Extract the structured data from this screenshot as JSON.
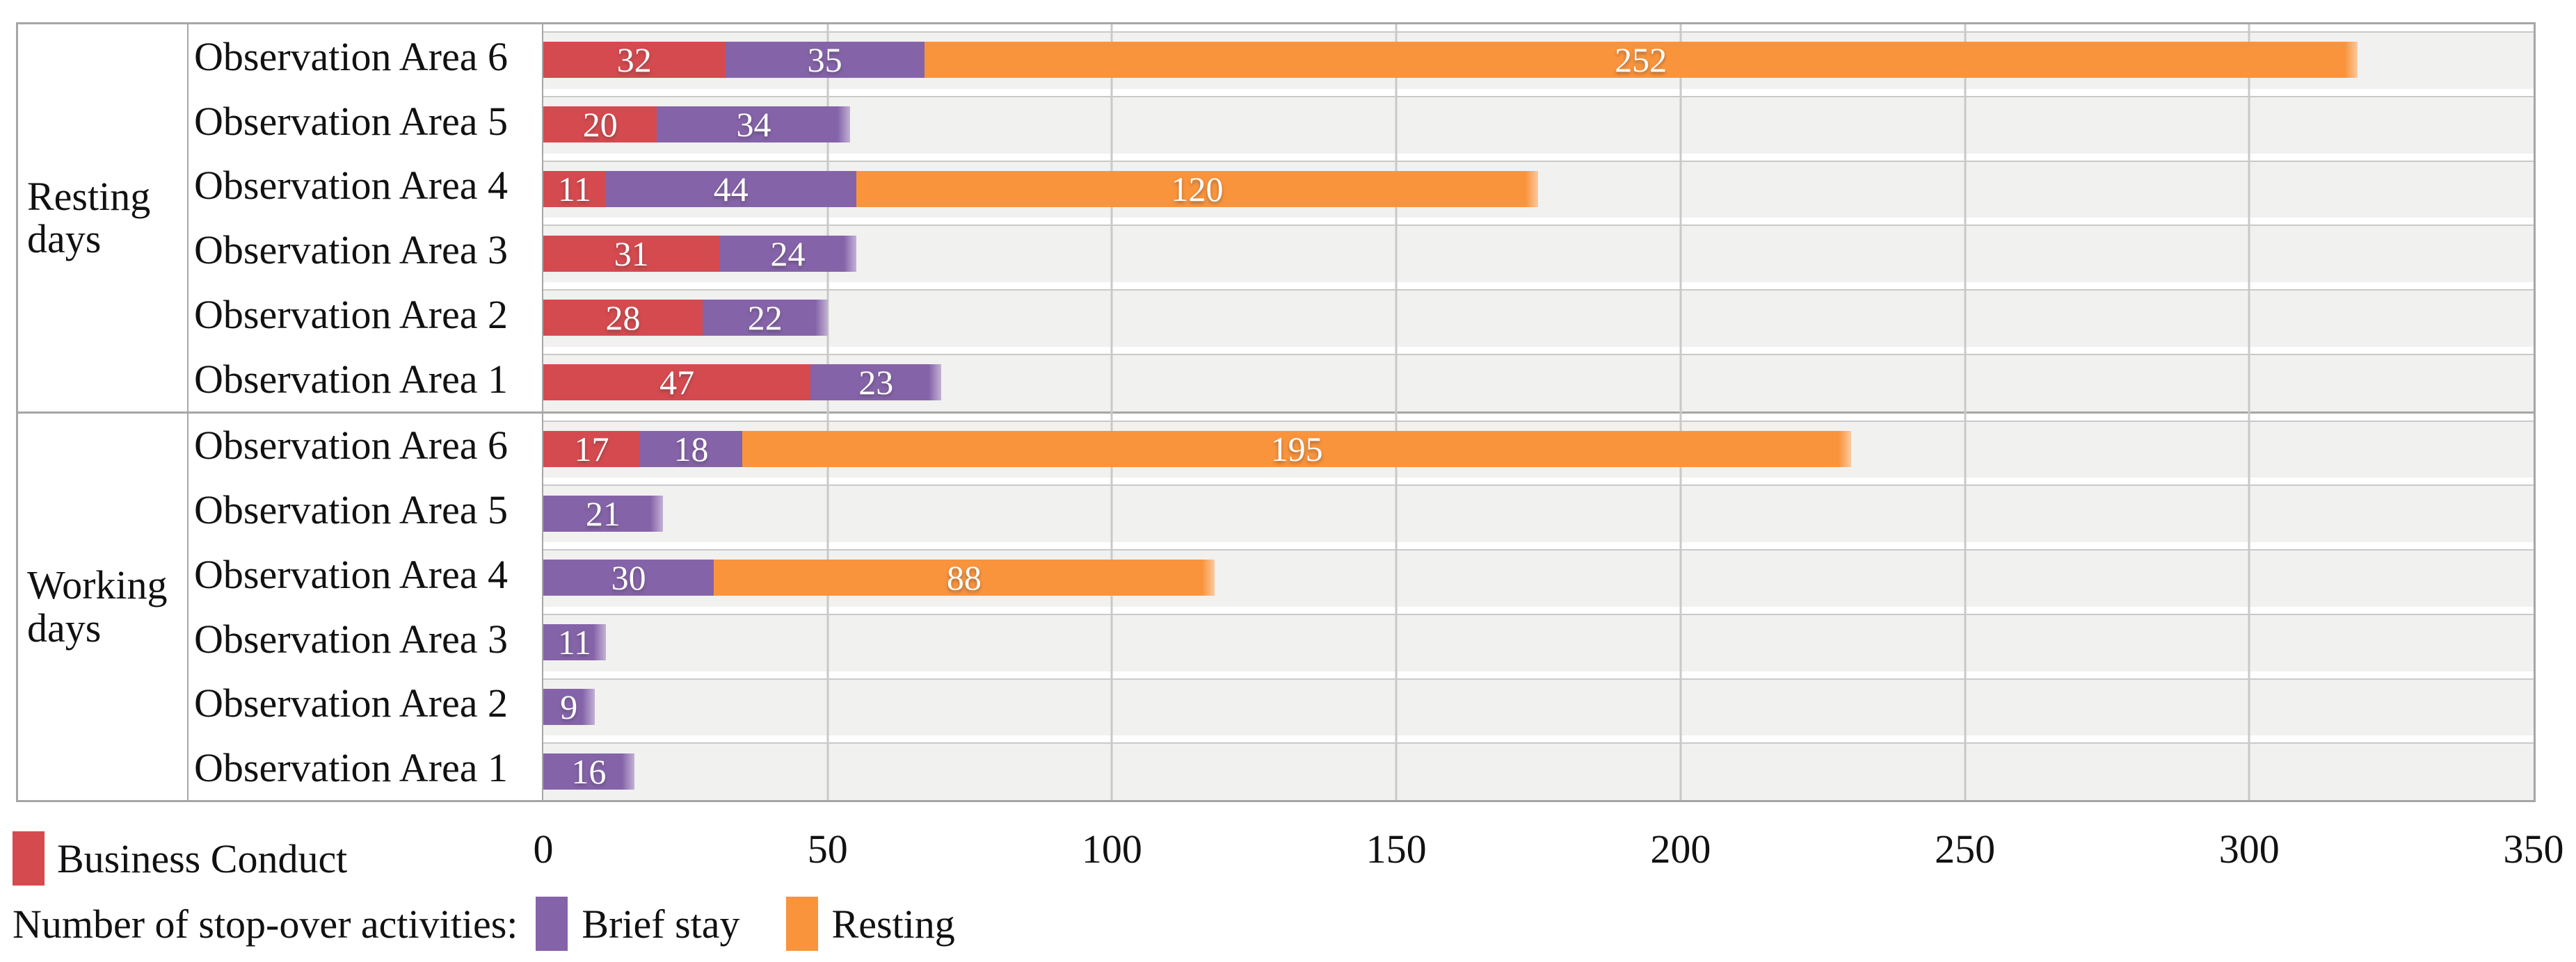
{
  "colors": {
    "business_conduct": "#d54a4f",
    "brief_stay": "#8563a9",
    "resting": "#f9943d",
    "band_bg": "#f1f1f0",
    "grid_line": "#c9c9c9",
    "frame_border": "#a6a6a6",
    "bar_value_text": "#ffffff",
    "text": "#111111"
  },
  "chart_data": {
    "type": "bar",
    "orientation": "horizontal",
    "stacked": true,
    "title": "",
    "xlabel": "Number of stop-over activities",
    "ylabel": "",
    "grid": true,
    "legend_position": "bottom-left",
    "x_axis": {
      "min": 0,
      "max": 350,
      "tick_step": 50,
      "tick_labels": [
        "0",
        "50",
        "100",
        "150",
        "200",
        "250",
        "300",
        "350"
      ]
    },
    "series": [
      {
        "name": "Business Conduct",
        "color_key": "business_conduct"
      },
      {
        "name": "Brief stay",
        "color_key": "brief_stay"
      },
      {
        "name": "Resting",
        "color_key": "resting"
      }
    ],
    "groups": [
      {
        "label": "Resting days",
        "rows": [
          {
            "category": "Observation Area 6",
            "values": [
              32,
              35,
              252
            ]
          },
          {
            "category": "Observation Area 5",
            "values": [
              20,
              34,
              0
            ]
          },
          {
            "category": "Observation Area 4",
            "values": [
              11,
              44,
              120
            ]
          },
          {
            "category": "Observation Area 3",
            "values": [
              31,
              24,
              0
            ]
          },
          {
            "category": "Observation Area 2",
            "values": [
              28,
              22,
              0
            ]
          },
          {
            "category": "Observation Area 1",
            "values": [
              47,
              23,
              0
            ]
          }
        ]
      },
      {
        "label": "Working days",
        "rows": [
          {
            "category": "Observation Area 6",
            "values": [
              17,
              18,
              195
            ]
          },
          {
            "category": "Observation Area 5",
            "values": [
              0,
              21,
              0
            ]
          },
          {
            "category": "Observation Area 4",
            "values": [
              0,
              30,
              88
            ]
          },
          {
            "category": "Observation Area 3",
            "values": [
              0,
              11,
              0
            ]
          },
          {
            "category": "Observation Area 2",
            "values": [
              0,
              9,
              0
            ]
          },
          {
            "category": "Observation Area 1",
            "values": [
              0,
              16,
              0
            ]
          }
        ]
      }
    ]
  },
  "legend": {
    "business_conduct_label": "Business Conduct",
    "prefix": "Number of stop-over activities:",
    "brief_stay_label": "Brief stay",
    "resting_label": "Resting"
  }
}
